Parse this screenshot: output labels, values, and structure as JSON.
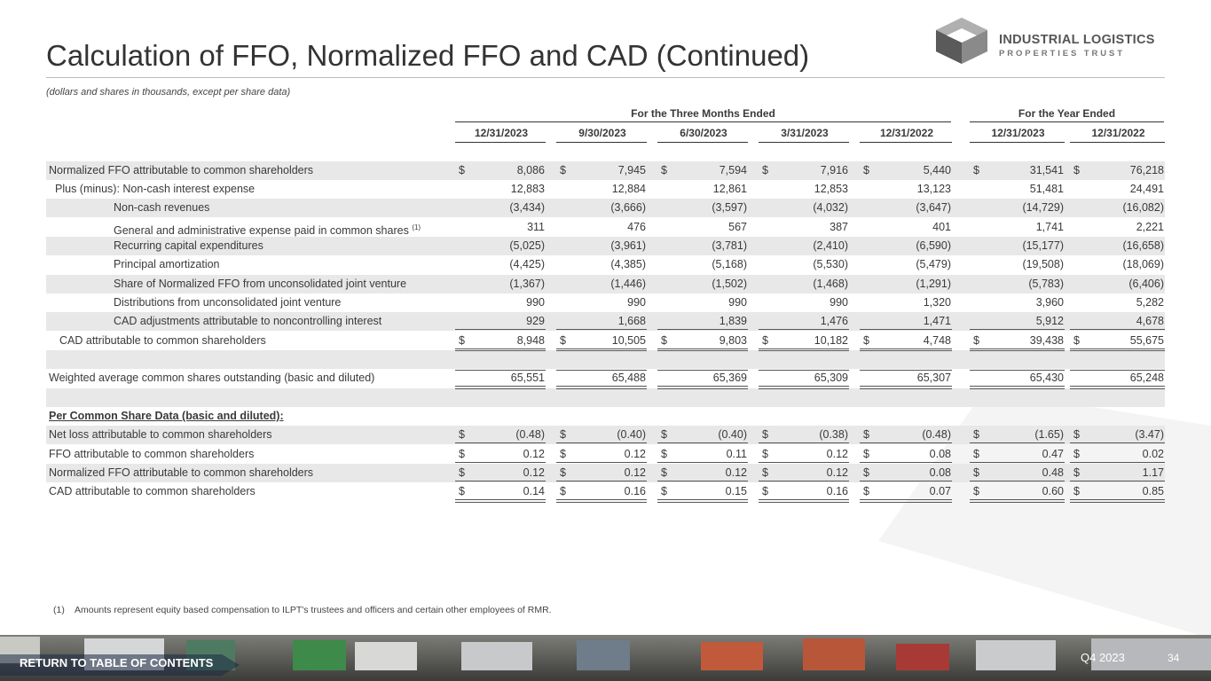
{
  "header": {
    "title": "Calculation of FFO, Normalized FFO and CAD (Continued)",
    "subtitle": "(dollars and shares in thousands, except per share data)"
  },
  "logo": {
    "line1": "INDUSTRIAL LOGISTICS",
    "line2": "PROPERTIES TRUST"
  },
  "table": {
    "group_headers": [
      "For the Three Months Ended",
      "For the Year Ended"
    ],
    "columns": [
      "12/31/2023",
      "9/30/2023",
      "6/30/2023",
      "3/31/2023",
      "12/31/2022",
      "12/31/2023",
      "12/31/2022"
    ],
    "rows": [
      {
        "label": "Normalized FFO attributable to common shareholders",
        "currency": "$",
        "values": [
          "8,086",
          "7,945",
          "7,594",
          "7,916",
          "5,440",
          "31,541",
          "76,218"
        ]
      },
      {
        "label": "Plus (minus): Non-cash interest expense",
        "values": [
          "12,883",
          "12,884",
          "12,861",
          "12,853",
          "13,123",
          "51,481",
          "24,491"
        ]
      },
      {
        "label": "Non-cash revenues",
        "values": [
          "(3,434)",
          "(3,666)",
          "(3,597)",
          "(4,032)",
          "(3,647)",
          "(14,729)",
          "(16,082)"
        ]
      },
      {
        "label": "General and administrative expense paid in common shares",
        "note": "(1)",
        "values": [
          "311",
          "476",
          "567",
          "387",
          "401",
          "1,741",
          "2,221"
        ]
      },
      {
        "label": "Recurring capital expenditures",
        "values": [
          "(5,025)",
          "(3,961)",
          "(3,781)",
          "(2,410)",
          "(6,590)",
          "(15,177)",
          "(16,658)"
        ]
      },
      {
        "label": "Principal amortization",
        "values": [
          "(4,425)",
          "(4,385)",
          "(5,168)",
          "(5,530)",
          "(5,479)",
          "(19,508)",
          "(18,069)"
        ]
      },
      {
        "label": "Share of Normalized FFO from unconsolidated joint venture",
        "values": [
          "(1,367)",
          "(1,446)",
          "(1,502)",
          "(1,468)",
          "(1,291)",
          "(5,783)",
          "(6,406)"
        ]
      },
      {
        "label": "Distributions from unconsolidated joint venture",
        "values": [
          "990",
          "990",
          "990",
          "990",
          "1,320",
          "3,960",
          "5,282"
        ]
      },
      {
        "label": "CAD adjustments attributable to noncontrolling interest",
        "values": [
          "929",
          "1,668",
          "1,839",
          "1,476",
          "1,471",
          "5,912",
          "4,678"
        ]
      },
      {
        "label": "CAD attributable to common shareholders",
        "currency": "$",
        "values": [
          "8,948",
          "10,505",
          "9,803",
          "10,182",
          "4,748",
          "39,438",
          "55,675"
        ]
      },
      {
        "label": "Weighted average common shares outstanding (basic and diluted)",
        "values": [
          "65,551",
          "65,488",
          "65,369",
          "65,309",
          "65,307",
          "65,430",
          "65,248"
        ]
      },
      {
        "label": "Per Common Share Data (basic and diluted):"
      },
      {
        "label": "Net loss attributable to common shareholders",
        "currency": "$",
        "values": [
          "(0.48)",
          "(0.40)",
          "(0.40)",
          "(0.38)",
          "(0.48)",
          "(1.65)",
          "(3.47)"
        ]
      },
      {
        "label": "FFO attributable to common shareholders",
        "currency": "$",
        "values": [
          "0.12",
          "0.12",
          "0.11",
          "0.12",
          "0.08",
          "0.47",
          "0.02"
        ]
      },
      {
        "label": "Normalized FFO attributable to common shareholders",
        "currency": "$",
        "values": [
          "0.12",
          "0.12",
          "0.12",
          "0.12",
          "0.08",
          "0.48",
          "1.17"
        ]
      },
      {
        "label": "CAD attributable to common shareholders",
        "currency": "$",
        "values": [
          "0.14",
          "0.16",
          "0.15",
          "0.16",
          "0.07",
          "0.60",
          "0.85"
        ]
      }
    ]
  },
  "footnote": {
    "marker": "(1)",
    "text": "Amounts represent equity based compensation to ILPT's trustees and officers and certain other employees of RMR."
  },
  "footer": {
    "link": "RETURN TO TABLE OF CONTENTS",
    "period": "Q4 2023",
    "page": "34"
  }
}
